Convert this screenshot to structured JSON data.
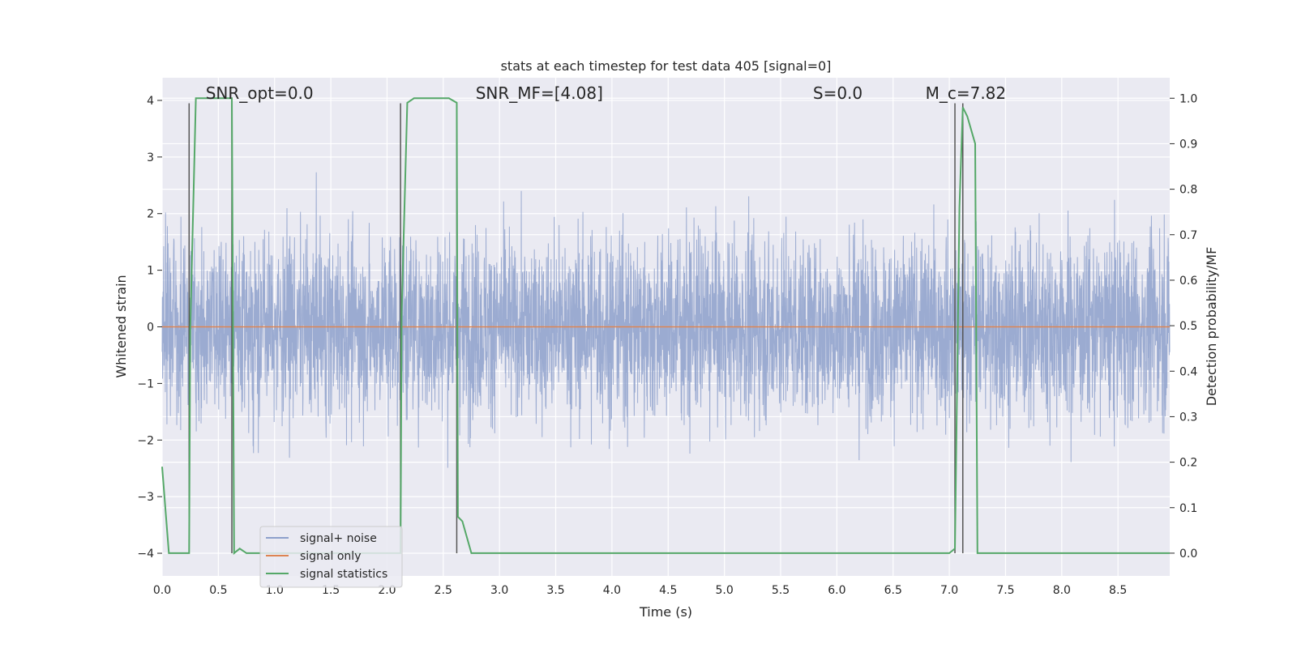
{
  "chart_data": {
    "type": "line",
    "title": "stats at each timestep for test data 405 [signal=0]",
    "xlabel": "Time (s)",
    "ylabel": "Whitened strain",
    "ylabel_right": "Detection probability/MF",
    "xlim": [
      0.0,
      8.96
    ],
    "ylim": [
      -4.4,
      4.4
    ],
    "ylim_right": [
      -0.05,
      1.045
    ],
    "x_ticks": [
      "0.0",
      "0.5",
      "1.0",
      "1.5",
      "2.0",
      "2.5",
      "3.0",
      "3.5",
      "4.0",
      "4.5",
      "5.0",
      "5.5",
      "6.0",
      "6.5",
      "7.0",
      "7.5",
      "8.0",
      "8.5"
    ],
    "y_ticks": [
      "−4",
      "−3",
      "−2",
      "−1",
      "0",
      "1",
      "2",
      "3",
      "4"
    ],
    "y_ticks_right": [
      "0.0",
      "0.1",
      "0.2",
      "0.3",
      "0.4",
      "0.5",
      "0.6",
      "0.7",
      "0.8",
      "0.9",
      "1.0"
    ],
    "grid": true,
    "annotations": [
      {
        "text": "SNR_opt=0.0",
        "x": 0.2,
        "y": 4.1
      },
      {
        "text": "SNR_MF=[4.08]",
        "x": 2.6,
        "y": 4.1
      },
      {
        "text": "S=0.0",
        "x": 5.6,
        "y": 4.1
      },
      {
        "text": "M_c=7.82",
        "x": 6.6,
        "y": 4.1
      }
    ],
    "vertical_lines": [
      0.24,
      0.62,
      2.12,
      2.62,
      7.05,
      7.12
    ],
    "series": [
      {
        "name": "signal+ noise",
        "color": "#8da0cb",
        "kind": "noise",
        "amplitude_std": 0.8,
        "samples": 4400,
        "x_range": [
          0.0,
          8.96
        ]
      },
      {
        "name": "signal only",
        "color": "#dd8452",
        "kind": "flat",
        "y": 0.0
      },
      {
        "name": "signal statistics",
        "color": "#55a868",
        "axis": "right",
        "x": [
          0.0,
          0.06,
          0.24,
          0.25,
          0.3,
          0.62,
          0.64,
          0.69,
          0.75,
          2.0,
          2.12,
          2.13,
          2.18,
          2.24,
          2.55,
          2.62,
          2.63,
          2.67,
          2.75,
          7.0,
          7.05,
          7.09,
          7.12,
          7.16,
          7.23,
          7.25,
          8.96
        ],
        "y": [
          0.19,
          0.0,
          0.0,
          0.49,
          1.0,
          1.0,
          0.0,
          0.01,
          0.0,
          0.0,
          0.0,
          0.53,
          0.99,
          1.0,
          1.0,
          0.99,
          0.08,
          0.07,
          0.0,
          0.0,
          0.01,
          0.76,
          0.98,
          0.96,
          0.9,
          0.0,
          0.0
        ]
      }
    ],
    "legend": {
      "placement": "lower-left",
      "entries": [
        "signal+ noise",
        "signal only",
        "signal statistics"
      ]
    }
  }
}
